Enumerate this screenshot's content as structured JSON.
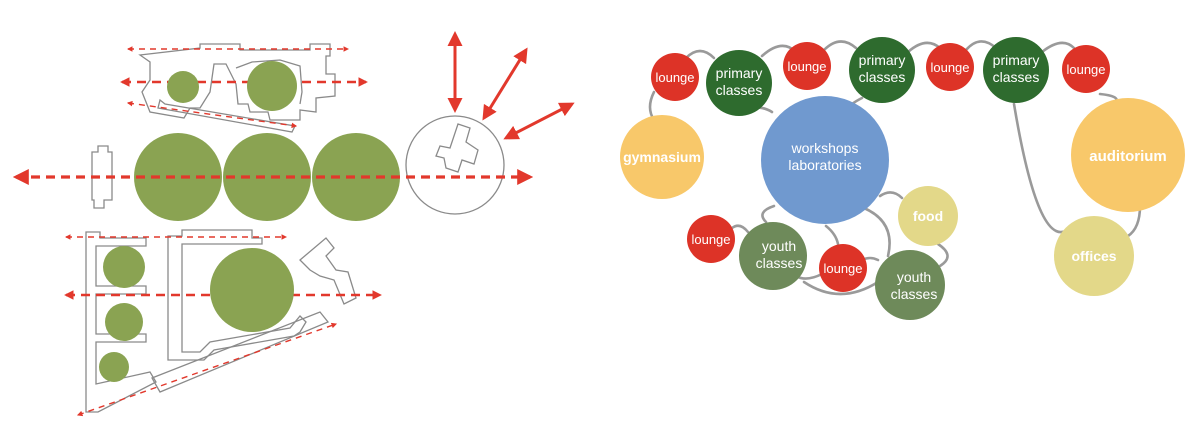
{
  "colors": {
    "accent_red": "#e2382c",
    "plan_green": "#8aa352",
    "outline_grey": "#8a8a8a",
    "link_grey": "#9a9a9a",
    "red_bubble": "#dd3327",
    "dark_green_bubble": "#2e6b2e",
    "mid_green_bubble": "#6e8a5a",
    "blue_bubble": "#7099cf",
    "orange_bubble": "#f8c86a",
    "yellow_bubble": "#e3d889"
  },
  "bubbles": {
    "lounge_1": "lounge",
    "primary_1": "primary\nclasses",
    "lounge_2": "lounge",
    "primary_2": "primary\nclasses",
    "lounge_3": "lounge",
    "primary_3": "primary\nclasses",
    "lounge_4": "lounge",
    "gymnasium": "gymnasium",
    "workshops": "workshops\nlaboratories",
    "food": "food",
    "auditorium": "auditorium",
    "offices": "offices",
    "lounge_5": "lounge",
    "youth_1": "youth\nclasses",
    "lounge_6": "lounge",
    "youth_2": "youth\nclasses"
  }
}
